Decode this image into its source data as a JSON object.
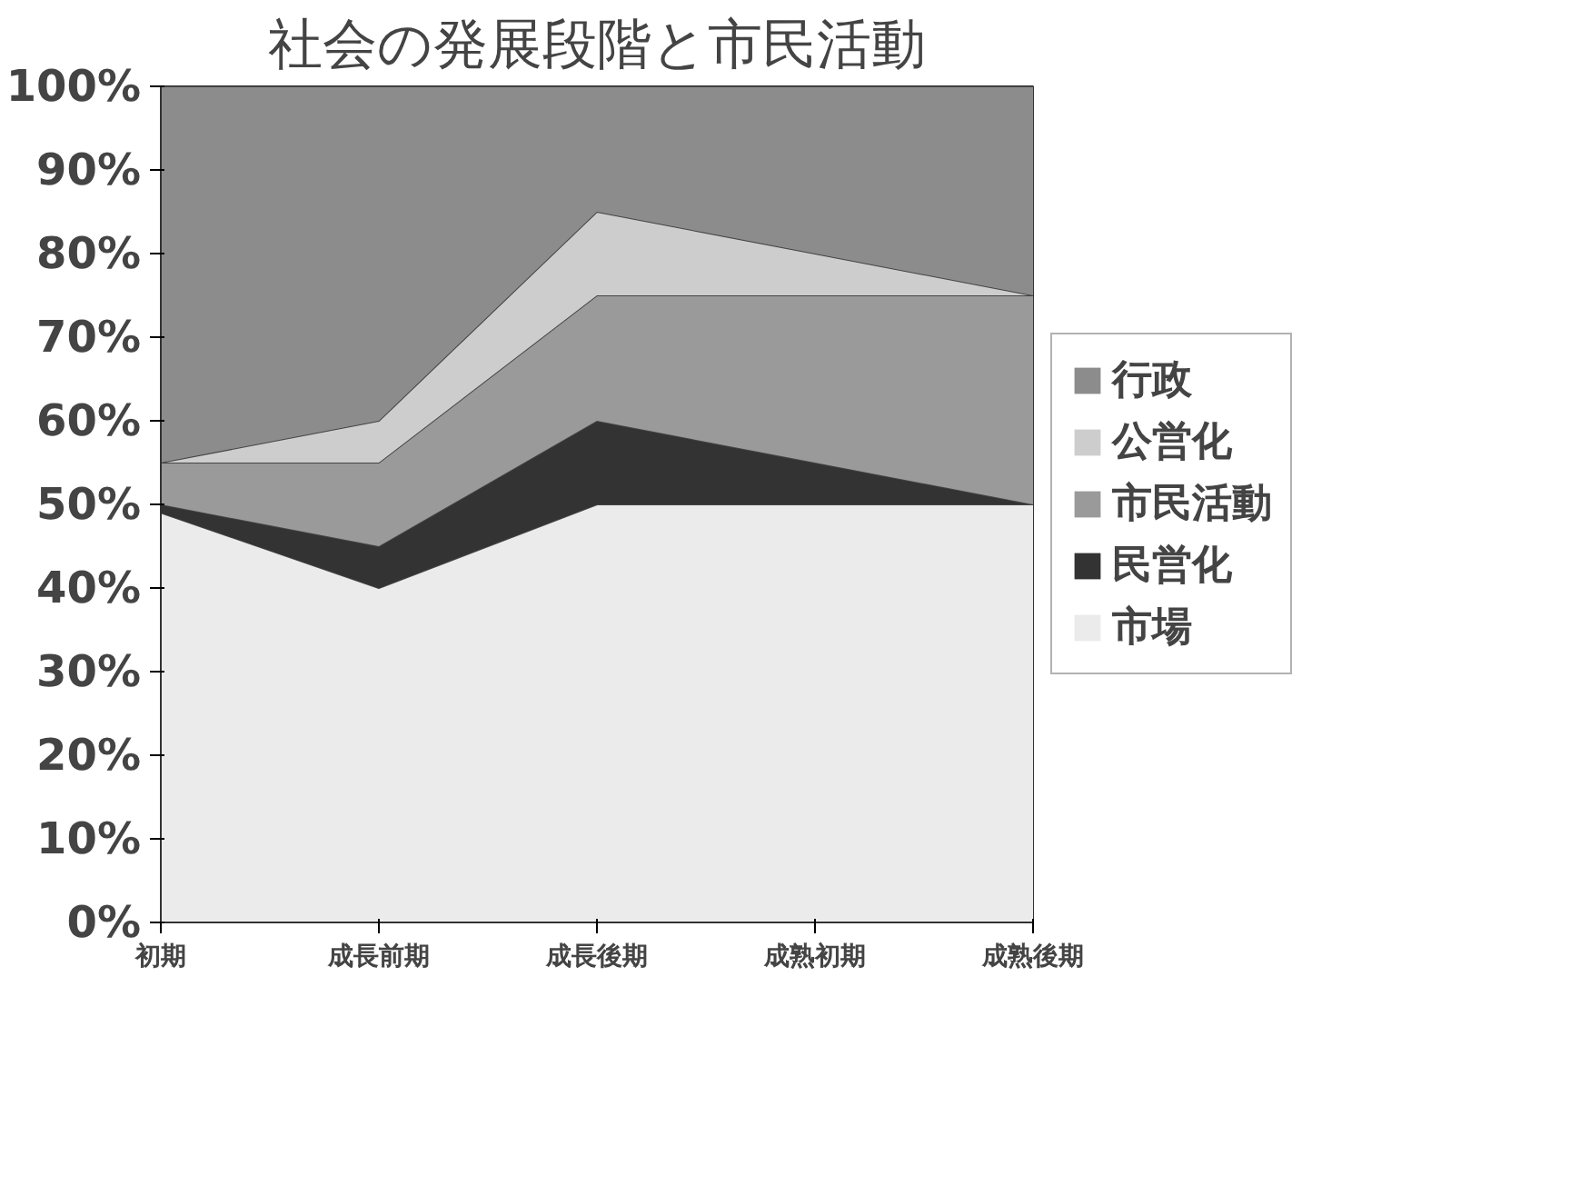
{
  "chart_data": {
    "type": "area",
    "stacked": true,
    "title": "社会の発展段階と市民活動",
    "categories": [
      "初期",
      "成長前期",
      "成長後期",
      "成熟初期",
      "成熟後期"
    ],
    "series": [
      {
        "name": "市場",
        "color": "#ebebeb",
        "values": [
          49,
          40,
          50,
          50,
          50
        ]
      },
      {
        "name": "民営化",
        "color": "#333333",
        "values": [
          1,
          5,
          10,
          5,
          0
        ]
      },
      {
        "name": "市民活動",
        "color": "#9a9a9a",
        "values": [
          5,
          10,
          15,
          20,
          25
        ]
      },
      {
        "name": "公営化",
        "color": "#cdcdcd",
        "values": [
          0,
          5,
          10,
          5,
          0
        ]
      },
      {
        "name": "行政",
        "color": "#8c8c8c",
        "values": [
          45,
          40,
          15,
          20,
          25
        ]
      }
    ],
    "ylim": [
      0,
      100
    ],
    "yticks": [
      {
        "value": 0,
        "label": "0%"
      },
      {
        "value": 10,
        "label": "10%"
      },
      {
        "value": 20,
        "label": "20%"
      },
      {
        "value": 30,
        "label": "30%"
      },
      {
        "value": 40,
        "label": "40%"
      },
      {
        "value": 50,
        "label": "50%"
      },
      {
        "value": 60,
        "label": "60%"
      },
      {
        "value": 70,
        "label": "70%"
      },
      {
        "value": 80,
        "label": "80%"
      },
      {
        "value": 90,
        "label": "90%"
      },
      {
        "value": 100,
        "label": "100%"
      }
    ],
    "legend": "right"
  }
}
